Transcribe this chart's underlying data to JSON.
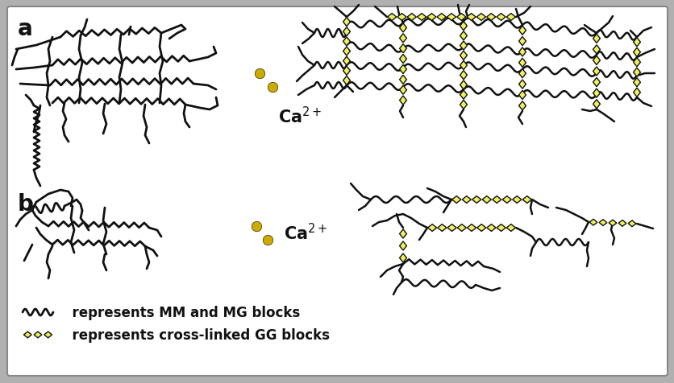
{
  "background_color": "#b0b0b0",
  "inner_bg_color": "#ffffff",
  "label_a": "a",
  "label_b": "b",
  "ca2plus_a": "Ca$^{2+}$",
  "ca2plus_b": "Ca$^{2+}$",
  "legend_line_text": "  represents MM and MG blocks",
  "legend_diamond_text": "  represents cross-linked GG blocks",
  "line_color": "#111111",
  "diamond_fill": "#f0f060",
  "diamond_edge": "#111111",
  "dot_color": "#ccaa00",
  "font_size_label": 20,
  "font_size_ca": 15,
  "font_size_legend": 12,
  "fig_w": 8.37,
  "fig_h": 4.77,
  "dpi": 100
}
